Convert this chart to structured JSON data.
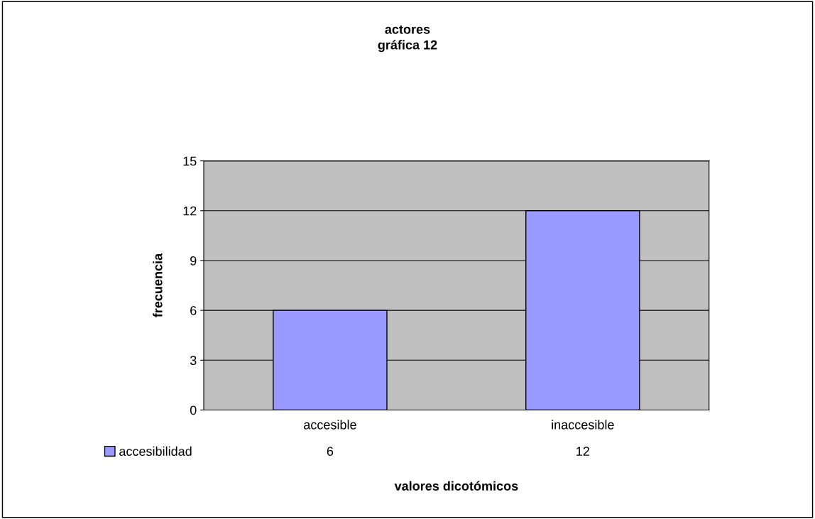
{
  "chart_data": {
    "type": "bar",
    "title": "actores",
    "subtitle": "gráfica 12",
    "xlabel": "valores dicotómicos",
    "ylabel": "frecuencia",
    "categories": [
      "accesible",
      "inaccesible"
    ],
    "series": [
      {
        "name": "accesibilidad",
        "color": "#9999ff",
        "values": [
          6,
          12
        ]
      }
    ],
    "ylim": [
      0,
      15
    ],
    "yticks": [
      0,
      3,
      6,
      9,
      12,
      15
    ],
    "grid": "y",
    "legend": "bottom left",
    "data_labels": true
  }
}
